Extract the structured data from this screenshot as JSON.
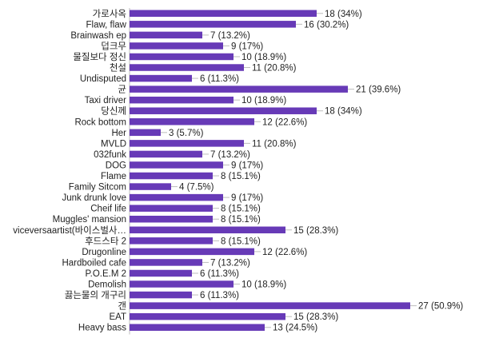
{
  "chart_data": {
    "type": "bar",
    "orientation": "horizontal",
    "bar_color": "#673ab7",
    "axis_color": "#bdbdbd",
    "grid": false,
    "xlim": [
      0,
      27
    ],
    "categories": [
      "가로사옥",
      "Flaw, flaw",
      "Brainwash ep",
      "덥크무",
      "물질보다 정신",
      "천설",
      "Undisputed",
      "균",
      "Taxi driver",
      "당신께",
      "Rock bottom",
      "Her",
      "MVLD",
      "032funk",
      "DOG",
      "Flame",
      "Family Sitcom",
      "Junk drunk love",
      "Cheif life",
      "Muggles' mansion",
      "viceversaartist(바이스벌사…",
      "후드스타 2",
      "Drugonline",
      "Hardboiled cafe",
      "P.O.E.M 2",
      "Demolish",
      "끓는물의 개구리",
      "갠",
      "EAT",
      "Heavy bass"
    ],
    "values": [
      18,
      16,
      7,
      9,
      10,
      11,
      6,
      21,
      10,
      18,
      12,
      3,
      11,
      7,
      9,
      8,
      4,
      9,
      8,
      8,
      15,
      8,
      12,
      7,
      6,
      10,
      6,
      27,
      15,
      13
    ],
    "value_labels": [
      "18 (34%)",
      "16 (30.2%)",
      "7 (13.2%)",
      "9 (17%)",
      "10 (18.9%)",
      "11 (20.8%)",
      "6 (11.3%)",
      "21 (39.6%)",
      "10 (18.9%)",
      "18 (34%)",
      "12 (22.6%)",
      "3 (5.7%)",
      "11 (20.8%)",
      "7 (13.2%)",
      "9 (17%)",
      "8 (15.1%)",
      "4 (7.5%)",
      "9 (17%)",
      "8 (15.1%)",
      "8 (15.1%)",
      "15 (28.3%)",
      "8 (15.1%)",
      "12 (22.6%)",
      "7 (13.2%)",
      "6 (11.3%)",
      "10 (18.9%)",
      "6 (11.3%)",
      "27 (50.9%)",
      "15 (28.3%)",
      "13 (24.5%)"
    ]
  }
}
